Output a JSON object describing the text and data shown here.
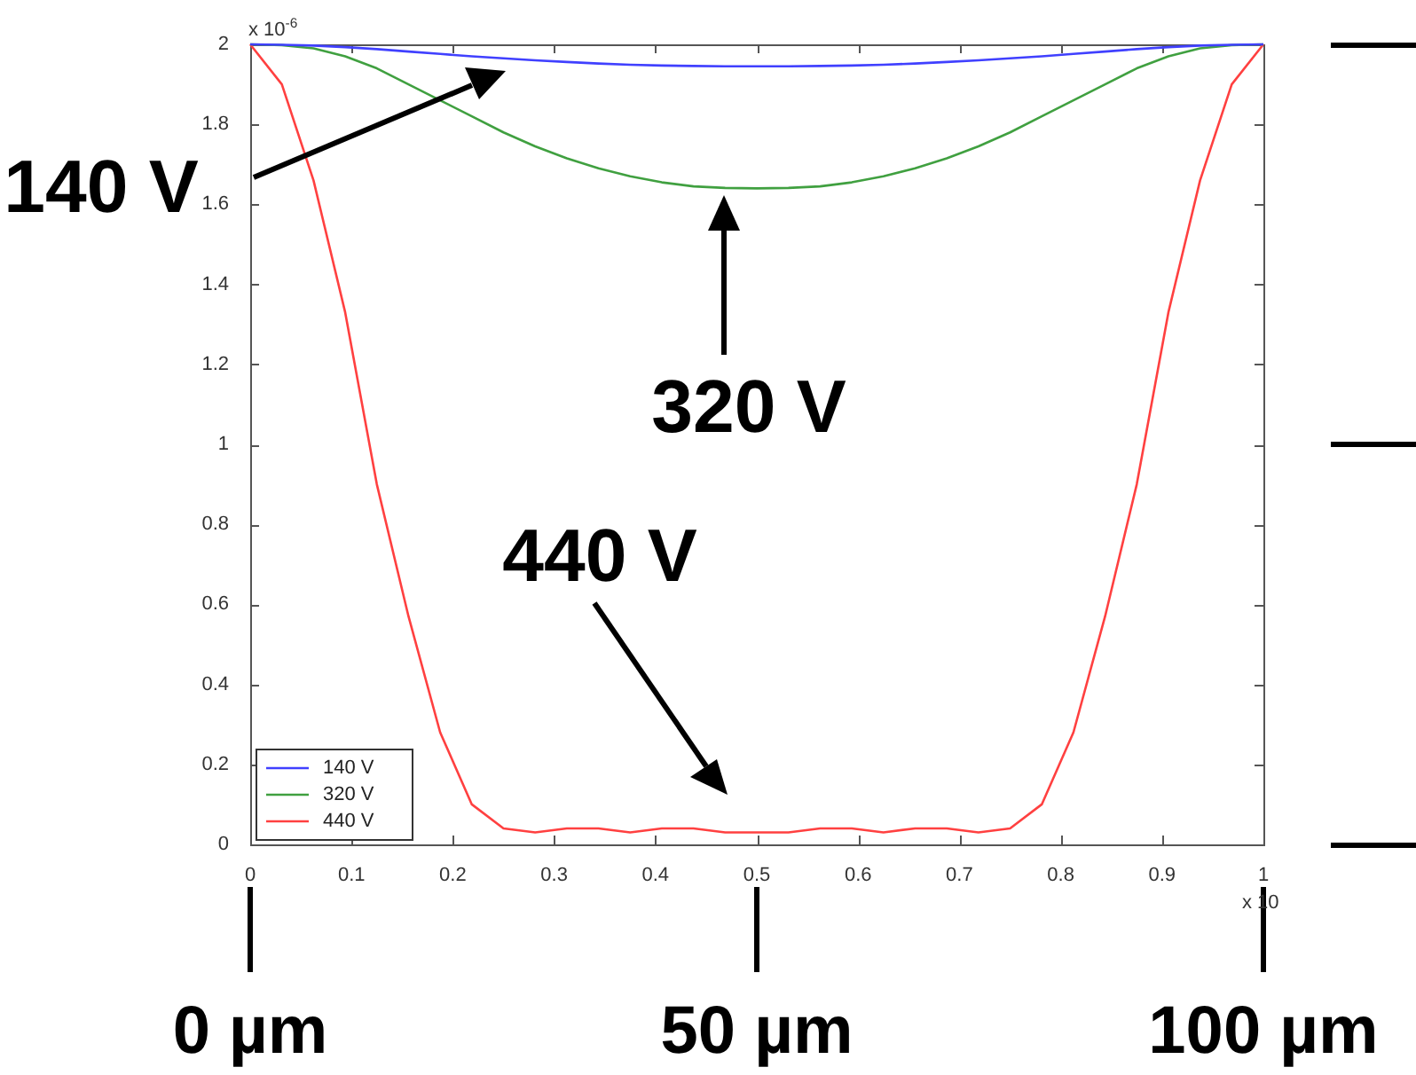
{
  "chart_data": {
    "type": "line",
    "x": [
      0,
      0.03125,
      0.0625,
      0.09375,
      0.125,
      0.15625,
      0.1875,
      0.21875,
      0.25,
      0.28125,
      0.3125,
      0.34375,
      0.375,
      0.40625,
      0.4375,
      0.46875,
      0.5,
      0.53125,
      0.5625,
      0.59375,
      0.625,
      0.65625,
      0.6875,
      0.71875,
      0.75,
      0.78125,
      0.8125,
      0.84375,
      0.875,
      0.90625,
      0.9375,
      0.96875,
      1
    ],
    "series": [
      {
        "name": "140 V",
        "color": "#4040ff",
        "values": [
          2,
          1.999,
          1.997,
          1.993,
          1.988,
          1.982,
          1.976,
          1.97,
          1.965,
          1.96,
          1.956,
          1.952,
          1.949,
          1.947,
          1.946,
          1.945,
          1.945,
          1.945,
          1.946,
          1.947,
          1.949,
          1.952,
          1.956,
          1.96,
          1.965,
          1.97,
          1.976,
          1.982,
          1.988,
          1.993,
          1.997,
          1.999,
          2
        ]
      },
      {
        "name": "320 V",
        "color": "#40a040",
        "values": [
          2,
          1.998,
          1.99,
          1.97,
          1.94,
          1.9,
          1.86,
          1.82,
          1.78,
          1.745,
          1.715,
          1.69,
          1.67,
          1.655,
          1.645,
          1.641,
          1.64,
          1.641,
          1.645,
          1.655,
          1.67,
          1.69,
          1.715,
          1.745,
          1.78,
          1.82,
          1.86,
          1.9,
          1.94,
          1.97,
          1.99,
          1.998,
          2
        ]
      },
      {
        "name": "440 V",
        "color": "#ff4040",
        "values": [
          2,
          1.9,
          1.66,
          1.33,
          0.9,
          0.57,
          0.28,
          0.1,
          0.04,
          0.03,
          0.04,
          0.04,
          0.03,
          0.04,
          0.04,
          0.03,
          0.03,
          0.03,
          0.04,
          0.04,
          0.03,
          0.04,
          0.04,
          0.03,
          0.04,
          0.1,
          0.28,
          0.57,
          0.9,
          1.33,
          1.66,
          1.9,
          2
        ]
      }
    ],
    "xlim": [
      0,
      1
    ],
    "xticks": [
      0,
      0.1,
      0.2,
      0.3,
      0.4,
      0.5,
      0.6,
      0.7,
      0.8,
      0.9,
      1
    ],
    "ylim": [
      0,
      2
    ],
    "yticks": [
      0,
      0.2,
      0.4,
      0.6,
      0.8,
      1,
      1.2,
      1.4,
      1.6,
      1.8,
      2
    ],
    "x2lim": [
      0,
      100
    ],
    "x2ticks": [
      {
        "value": 0,
        "label": "0 µm"
      },
      {
        "value": 50,
        "label": "50 µm"
      },
      {
        "value": 100,
        "label": "100 µm"
      }
    ],
    "annotations": [
      "140 V",
      "320 V",
      "440 V",
      "x 10$^{-6}$",
      "x 10"
    ],
    "legend": "bottom left",
    "grid": false,
    "marker": "none",
    "line_style": "solid"
  }
}
